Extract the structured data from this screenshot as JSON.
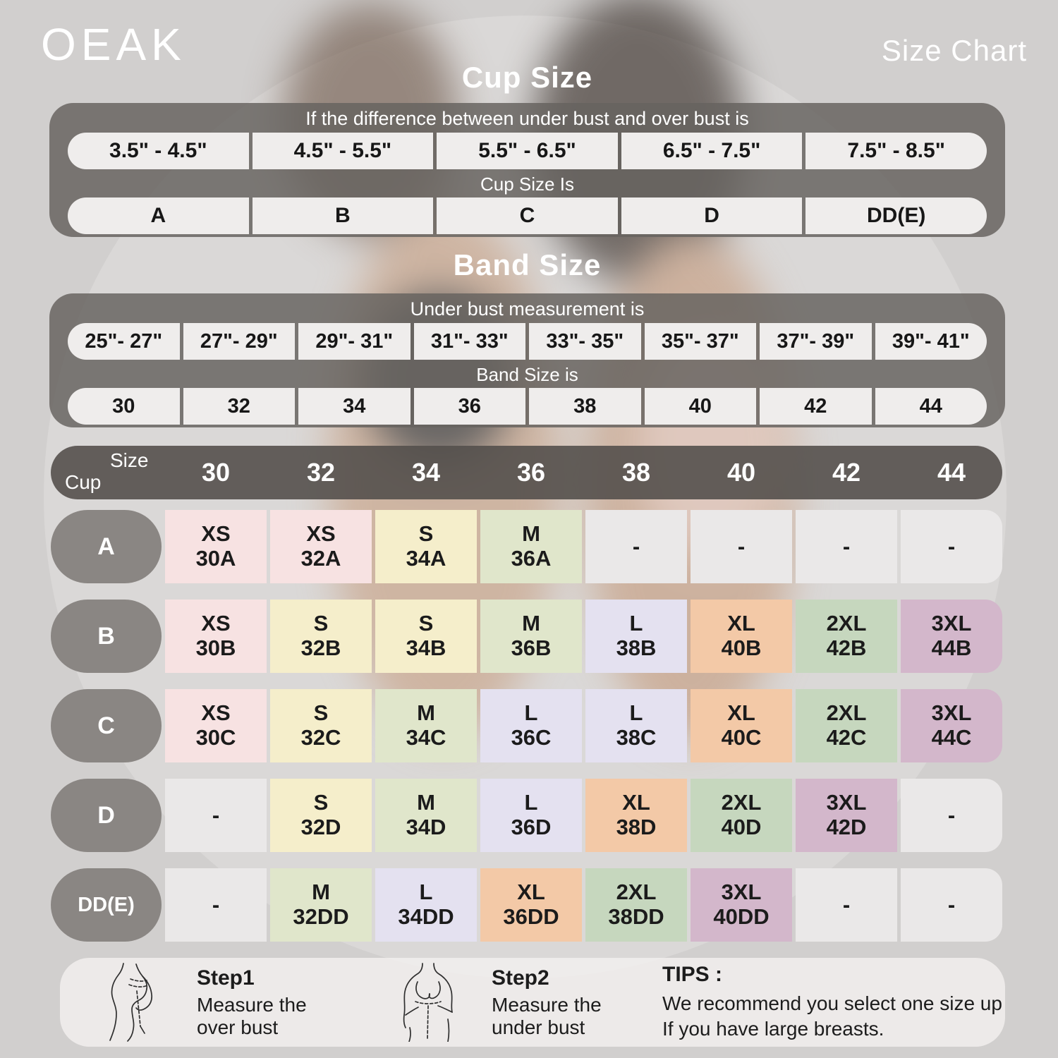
{
  "header": {
    "logo": "OEAK",
    "title": "Size Chart"
  },
  "cup_section": {
    "title": "Cup Size",
    "caption_top": "If the difference between under bust and over bust is",
    "ranges": [
      "3.5\" - 4.5\"",
      "4.5\" - 5.5\"",
      "5.5\" - 6.5\"",
      "6.5\" - 7.5\"",
      "7.5\" - 8.5\""
    ],
    "caption_mid": "Cup Size Is",
    "cups": [
      "A",
      "B",
      "C",
      "D",
      "DD(E)"
    ]
  },
  "band_section": {
    "title": "Band Size",
    "caption_top": "Under bust measurement is",
    "ranges": [
      "25\"- 27\"",
      "27\"- 29\"",
      "29\"- 31\"",
      "31\"- 33\"",
      "33\"- 35\"",
      "35\"- 37\"",
      "37\"- 39\"",
      "39\"- 41\""
    ],
    "caption_mid": "Band Size is",
    "bands": [
      "30",
      "32",
      "34",
      "36",
      "38",
      "40",
      "42",
      "44"
    ]
  },
  "matrix": {
    "corner_top": "Size",
    "corner_bottom": "Cup",
    "columns": [
      "30",
      "32",
      "34",
      "36",
      "38",
      "40",
      "42",
      "44"
    ],
    "rows": [
      {
        "label": "A",
        "cells": [
          {
            "size": "XS",
            "code": "30A",
            "color": "pink"
          },
          {
            "size": "XS",
            "code": "32A",
            "color": "pink"
          },
          {
            "size": "S",
            "code": "34A",
            "color": "yellow"
          },
          {
            "size": "M",
            "code": "36A",
            "color": "green"
          },
          {
            "size": "-",
            "code": "",
            "color": "empty"
          },
          {
            "size": "-",
            "code": "",
            "color": "empty"
          },
          {
            "size": "-",
            "code": "",
            "color": "empty"
          },
          {
            "size": "-",
            "code": "",
            "color": "empty"
          }
        ]
      },
      {
        "label": "B",
        "cells": [
          {
            "size": "XS",
            "code": "30B",
            "color": "pink"
          },
          {
            "size": "S",
            "code": "32B",
            "color": "yellow"
          },
          {
            "size": "S",
            "code": "34B",
            "color": "yellow"
          },
          {
            "size": "M",
            "code": "36B",
            "color": "green"
          },
          {
            "size": "L",
            "code": "38B",
            "color": "lavender"
          },
          {
            "size": "XL",
            "code": "40B",
            "color": "peach"
          },
          {
            "size": "2XL",
            "code": "42B",
            "color": "sage"
          },
          {
            "size": "3XL",
            "code": "44B",
            "color": "mauve"
          }
        ]
      },
      {
        "label": "C",
        "cells": [
          {
            "size": "XS",
            "code": "30C",
            "color": "pink"
          },
          {
            "size": "S",
            "code": "32C",
            "color": "yellow"
          },
          {
            "size": "M",
            "code": "34C",
            "color": "green"
          },
          {
            "size": "L",
            "code": "36C",
            "color": "lavender"
          },
          {
            "size": "L",
            "code": "38C",
            "color": "lavender"
          },
          {
            "size": "XL",
            "code": "40C",
            "color": "peach"
          },
          {
            "size": "2XL",
            "code": "42C",
            "color": "sage"
          },
          {
            "size": "3XL",
            "code": "44C",
            "color": "mauve"
          }
        ]
      },
      {
        "label": "D",
        "cells": [
          {
            "size": "-",
            "code": "",
            "color": "empty"
          },
          {
            "size": "S",
            "code": "32D",
            "color": "yellow"
          },
          {
            "size": "M",
            "code": "34D",
            "color": "green"
          },
          {
            "size": "L",
            "code": "36D",
            "color": "lavender"
          },
          {
            "size": "XL",
            "code": "38D",
            "color": "peach"
          },
          {
            "size": "2XL",
            "code": "40D",
            "color": "sage"
          },
          {
            "size": "3XL",
            "code": "42D",
            "color": "mauve"
          },
          {
            "size": "-",
            "code": "",
            "color": "empty"
          }
        ]
      },
      {
        "label": "DD(E)",
        "cells": [
          {
            "size": "-",
            "code": "",
            "color": "empty"
          },
          {
            "size": "M",
            "code": "32DD",
            "color": "green"
          },
          {
            "size": "L",
            "code": "34DD",
            "color": "lavender"
          },
          {
            "size": "XL",
            "code": "36DD",
            "color": "peach"
          },
          {
            "size": "2XL",
            "code": "38DD",
            "color": "sage"
          },
          {
            "size": "3XL",
            "code": "40DD",
            "color": "mauve"
          },
          {
            "size": "-",
            "code": "",
            "color": "empty"
          },
          {
            "size": "-",
            "code": "",
            "color": "empty"
          }
        ]
      }
    ]
  },
  "footer": {
    "step1": {
      "title": "Step1",
      "line1": "Measure the",
      "line2": "over bust"
    },
    "step2": {
      "title": "Step2",
      "line1": "Measure the",
      "line2": "under bust"
    },
    "tips": {
      "title": "TIPS :",
      "line1": "We recommend you select one size up",
      "line2": "If you have large breasts."
    }
  },
  "palette": {
    "pink": "#f7e2e2",
    "yellow": "#f5eecb",
    "green": "#e0e6cb",
    "lavender": "#e4e1f0",
    "peach": "#f3c9a7",
    "sage": "#c6d7be",
    "mauve": "#d3b7cb",
    "empty": "#eae8e8"
  }
}
